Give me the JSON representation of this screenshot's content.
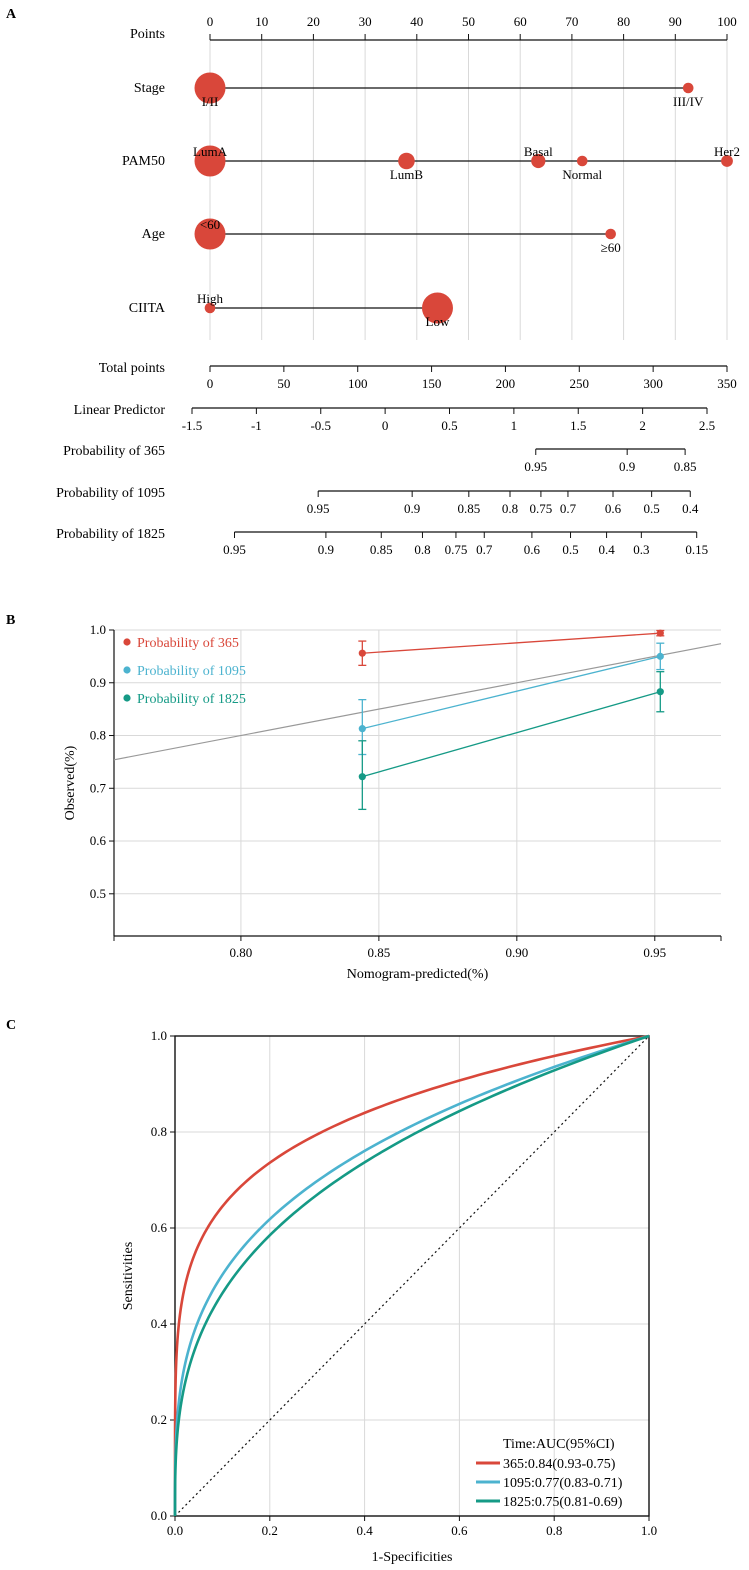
{
  "colors": {
    "accent_red": "#d9473a",
    "accent_blue": "#4cb3cf",
    "accent_green": "#159a86",
    "grid": "#d9d9d9",
    "diag": "#999999"
  },
  "chart_data": [
    {
      "type": "nomogram",
      "panel_label": "A",
      "points_axis": {
        "label": "Points",
        "range": [
          0,
          100
        ],
        "ticks": [
          "0",
          "10",
          "20",
          "30",
          "40",
          "50",
          "60",
          "70",
          "80",
          "90",
          "100"
        ]
      },
      "variables": [
        {
          "name": "Stage",
          "levels": [
            {
              "label": "I/II",
              "points": 0,
              "weight": 1.0,
              "label_pos": "below"
            },
            {
              "label": "III/IV",
              "points": 92.5,
              "weight": 0.15,
              "label_pos": "below"
            }
          ]
        },
        {
          "name": "PAM50",
          "levels": [
            {
              "label": "LumA",
              "points": 0,
              "weight": 1.0,
              "label_pos": "above"
            },
            {
              "label": "LumB",
              "points": 38,
              "weight": 0.4,
              "label_pos": "below"
            },
            {
              "label": "Basal",
              "points": 63.5,
              "weight": 0.3,
              "label_pos": "above"
            },
            {
              "label": "Normal",
              "points": 72,
              "weight": 0.15,
              "label_pos": "below"
            },
            {
              "label": "Her2",
              "points": 100,
              "weight": 0.2,
              "label_pos": "above"
            }
          ]
        },
        {
          "name": "Age",
          "levels": [
            {
              "label": "<60",
              "points": 0,
              "weight": 1.0,
              "label_pos": "above"
            },
            {
              "label": "≥60",
              "points": 77.5,
              "weight": 0.15,
              "label_pos": "below"
            }
          ]
        },
        {
          "name": "CIITA",
          "levels": [
            {
              "label": "High",
              "points": 0,
              "weight": 0.15,
              "label_pos": "above"
            },
            {
              "label": "Low",
              "points": 44,
              "weight": 1.0,
              "label_pos": "below"
            }
          ]
        }
      ],
      "total_points": {
        "label": "Total points",
        "range": [
          0,
          350
        ],
        "ticks": [
          "0",
          "50",
          "100",
          "150",
          "200",
          "250",
          "300",
          "350"
        ]
      },
      "linear_predictor": {
        "label": "Linear Predictor",
        "range": [
          -1.5,
          2.5
        ],
        "ticks": [
          "-1.5",
          "-1",
          "-0.5",
          "0",
          "0.5",
          "1",
          "1.5",
          "2",
          "2.5"
        ]
      },
      "prob_scales": [
        {
          "label": "Probability of 365",
          "ticks": [
            {
              "t": "0.95",
              "lp": 1.17
            },
            {
              "t": "0.9",
              "lp": 1.88
            },
            {
              "t": "0.85",
              "lp": 2.33
            }
          ]
        },
        {
          "label": "Probability of 1095",
          "ticks": [
            {
              "t": "0.95",
              "lp": -0.52
            },
            {
              "t": "0.9",
              "lp": 0.21
            },
            {
              "t": "0.85",
              "lp": 0.65
            },
            {
              "t": "0.8",
              "lp": 0.97
            },
            {
              "t": "0.75",
              "lp": 1.21
            },
            {
              "t": "0.7",
              "lp": 1.42
            },
            {
              "t": "0.6",
              "lp": 1.77
            },
            {
              "t": "0.5",
              "lp": 2.07
            },
            {
              "t": "0.4",
              "lp": 2.37
            }
          ]
        },
        {
          "label": "Probability of 1825",
          "ticks": [
            {
              "t": "0.95",
              "lp": -1.17
            },
            {
              "t": "0.9",
              "lp": -0.46
            },
            {
              "t": "0.85",
              "lp": -0.03
            },
            {
              "t": "0.8",
              "lp": 0.29
            },
            {
              "t": "0.75",
              "lp": 0.55
            },
            {
              "t": "0.7",
              "lp": 0.77
            },
            {
              "t": "0.6",
              "lp": 1.14
            },
            {
              "t": "0.5",
              "lp": 1.44
            },
            {
              "t": "0.4",
              "lp": 1.72
            },
            {
              "t": "0.3",
              "lp": 1.99
            },
            {
              "t": "0.15",
              "lp": 2.42
            }
          ]
        }
      ]
    },
    {
      "type": "calibration",
      "panel_label": "B",
      "xlabel": "Nomogram-predicted(%)",
      "ylabel": "Observed(%)",
      "xlim": [
        0.754,
        0.974
      ],
      "ylim": [
        0.42,
        1.0
      ],
      "xticks": [
        "0.80",
        "0.85",
        "0.90",
        "0.95"
      ],
      "yticks": [
        "0.5",
        "0.6",
        "0.7",
        "0.8",
        "0.9",
        "1.0"
      ],
      "legend_position": "top-left",
      "series": [
        {
          "name": "Probability of 365",
          "color": "#d9473a",
          "points": [
            {
              "x": 0.844,
              "y": 0.956,
              "lo": 0.933,
              "hi": 0.979
            },
            {
              "x": 0.952,
              "y": 0.994,
              "lo": 0.989,
              "hi": 0.999
            }
          ]
        },
        {
          "name": "Probability of 1095",
          "color": "#4cb3cf",
          "points": [
            {
              "x": 0.844,
              "y": 0.813,
              "lo": 0.764,
              "hi": 0.868
            },
            {
              "x": 0.952,
              "y": 0.95,
              "lo": 0.925,
              "hi": 0.975
            }
          ]
        },
        {
          "name": "Probability of 1825",
          "color": "#159a86",
          "points": [
            {
              "x": 0.844,
              "y": 0.722,
              "lo": 0.66,
              "hi": 0.79
            },
            {
              "x": 0.952,
              "y": 0.883,
              "lo": 0.845,
              "hi": 0.921
            }
          ]
        }
      ]
    },
    {
      "type": "line",
      "panel_label": "C",
      "xlabel": "1-Specificities",
      "ylabel": "Sensitivities",
      "xlim": [
        0,
        1
      ],
      "ylim": [
        0,
        1
      ],
      "xticks": [
        "0.0",
        "0.2",
        "0.4",
        "0.6",
        "0.8",
        "1.0"
      ],
      "yticks": [
        "0.0",
        "0.2",
        "0.4",
        "0.6",
        "0.8",
        "1.0"
      ],
      "legend_title": "Time:AUC(95%CI)",
      "legend_position": "bottom-right",
      "series": [
        {
          "name": "365:0.84(0.93-0.75)",
          "color": "#d9473a",
          "auc": 0.84
        },
        {
          "name": "1095:0.77(0.83-0.71)",
          "color": "#4cb3cf",
          "auc": 0.77
        },
        {
          "name": "1825:0.75(0.81-0.69)",
          "color": "#159a86",
          "auc": 0.75
        }
      ]
    }
  ]
}
